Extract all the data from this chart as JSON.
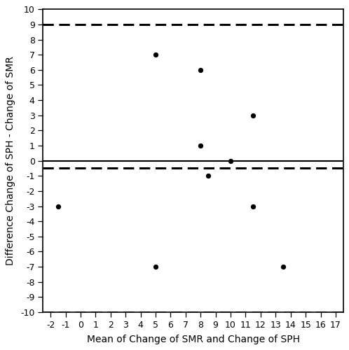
{
  "x_data": [
    -1.5,
    5.0,
    5.0,
    8.0,
    8.0,
    8.5,
    10.0,
    11.5,
    11.5,
    13.5
  ],
  "y_data": [
    -3,
    7,
    -7,
    6,
    1,
    -1,
    0,
    3,
    -3,
    -7
  ],
  "mean_line": -0.5,
  "upper_loa": 9.0,
  "lower_loa": -10.0,
  "zero_line": 0.0,
  "xlim": [
    -2.5,
    17.5
  ],
  "ylim": [
    -10,
    10
  ],
  "xticks": [
    -2,
    -1,
    0,
    1,
    2,
    3,
    4,
    5,
    6,
    7,
    8,
    9,
    10,
    11,
    12,
    13,
    14,
    15,
    16,
    17
  ],
  "yticks": [
    -10,
    -9,
    -8,
    -7,
    -6,
    -5,
    -4,
    -3,
    -2,
    -1,
    0,
    1,
    2,
    3,
    4,
    5,
    6,
    7,
    8,
    9,
    10
  ],
  "xlabel": "Mean of Change of SMR and Change of SPH",
  "ylabel": "Difference Change of SPH - Change of SMR",
  "dot_color": "#000000",
  "dot_size": 18,
  "line_color": "#000000",
  "dashed_linewidth": 2.2,
  "solid_linewidth": 1.5,
  "background_color": "#ffffff",
  "tick_fontsize": 9,
  "label_fontsize": 10
}
